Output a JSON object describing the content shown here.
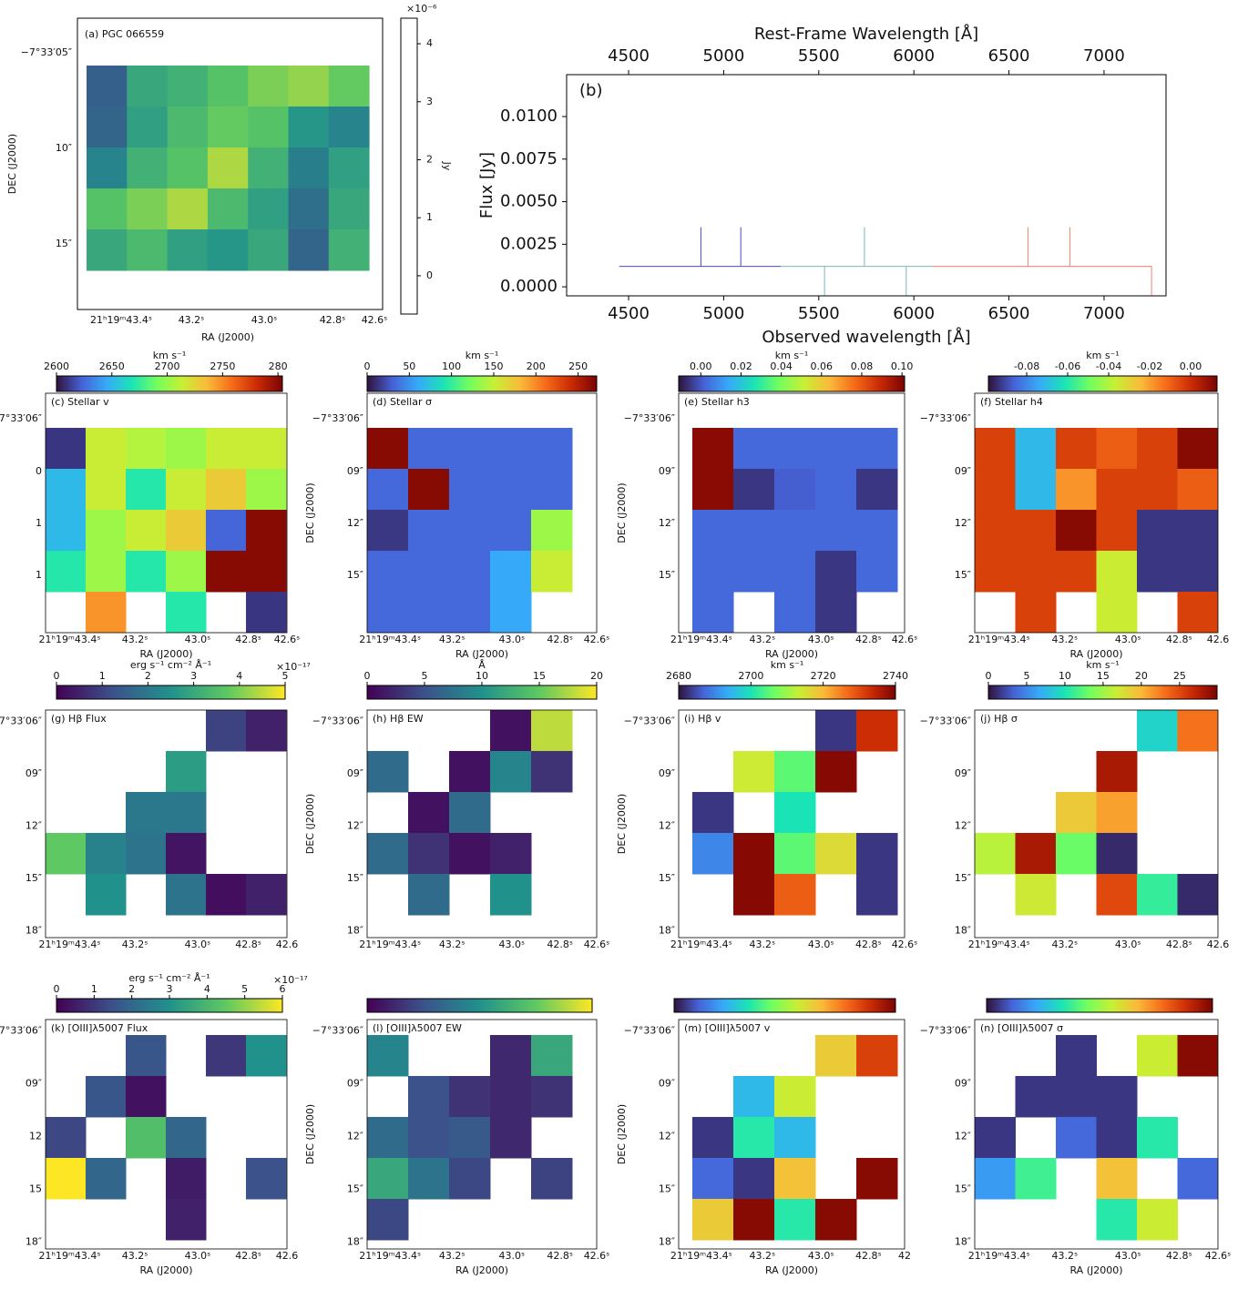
{
  "chart_data": [
    {
      "type": "map",
      "title": "(a) PGC 066559",
      "xlabel": "RA (J2000)",
      "ylabel": "DEC (J2000)",
      "xticklabels": [
        "21ʰ19ᵐ43.4ˢ",
        "43.2ˢ",
        "43.0ˢ",
        "42.8ˢ",
        "42.6ˢ"
      ],
      "yticklabels": [
        "−7°33′05″",
        "10″",
        "15″"
      ],
      "colorbar": {
        "label": "Jy",
        "multiplier": "×10⁻⁶",
        "lim": [
          -0.66,
          4.44
        ],
        "ticks": [
          0,
          1,
          2,
          3,
          4
        ],
        "fill": false
      },
      "colormap": [
        "#440154",
        "#3b528b",
        "#21918c",
        "#5ec962",
        "#fde725"
      ],
      "cells": [
        [
          0.9,
          2.4,
          2.6,
          3.0,
          3.4,
          3.6,
          3.2
        ],
        [
          1.0,
          2.2,
          2.8,
          3.2,
          3.0,
          2.0,
          1.6
        ],
        [
          1.6,
          2.6,
          3.0,
          3.8,
          2.6,
          1.5,
          2.2
        ],
        [
          3.0,
          3.4,
          3.8,
          2.8,
          2.2,
          1.2,
          2.4
        ],
        [
          2.4,
          2.8,
          2.2,
          2.0,
          2.4,
          1.0,
          2.6
        ]
      ]
    },
    {
      "type": "line",
      "annotation": "(b)",
      "xlabel": "Observed wavelength [Å]",
      "x2label": "Rest-Frame Wavelength [Å]",
      "ylabel": "Flux [Jy]",
      "xlim": [
        4174,
        7326
      ],
      "xticks": [
        4500,
        5000,
        5500,
        6000,
        6500,
        7000
      ],
      "x2lim": [
        4174,
        7326
      ],
      "x2ticks": [
        4500,
        5000,
        5500,
        6000,
        6500,
        7000
      ],
      "ylim": [
        -0.00053,
        0.01246
      ],
      "yticks": [
        {
          "value": 0,
          "label": "0.0000"
        },
        0.0025,
        {
          "value": 0.005,
          "label": "0.0050"
        },
        0.0075,
        {
          "value": 0.01,
          "label": "0.0100"
        }
      ],
      "series": [
        {
          "color": "#4a4ac8",
          "x": [
            4450,
            4880,
            4880,
            4880,
            5090,
            5090,
            5090,
            5300
          ],
          "values": [
            0.0012,
            0.0012,
            0.0035,
            0.0012,
            0.0012,
            0.0035,
            0.0012,
            0.0012
          ]
        },
        {
          "color": "#7ab8b8",
          "x": [
            5300,
            5530,
            5530,
            5530,
            5740,
            5740,
            5740,
            5960,
            5960,
            5960,
            6100
          ],
          "values": [
            0.0012,
            0.0012,
            -0.0005,
            0.0012,
            0.0012,
            0.0035,
            0.0012,
            0.0012,
            -0.0005,
            0.0012,
            0.0012
          ]
        },
        {
          "color": "#f08070",
          "x": [
            6100,
            6600,
            6600,
            6600,
            6820,
            6820,
            6820,
            7250,
            7250
          ],
          "values": [
            0.0012,
            0.0012,
            0.0035,
            0.0012,
            0.0012,
            0.0035,
            0.0012,
            0.0012,
            -0.0005
          ]
        }
      ]
    },
    {
      "type": "map",
      "title": "(c) Stellar v",
      "xlabel": "RA (J2000)",
      "xticklabels": [
        "21ʰ19ᵐ43.4ˢ",
        "43.2ˢ",
        "43.0ˢ",
        "42.8ˢ",
        "42.6ˢ"
      ],
      "yticklabels": [
        "−7°33′06″",
        "0",
        "1",
        "1"
      ],
      "colorbar": {
        "label": "km s⁻¹",
        "lim": [
          2600,
          2804
        ],
        "ticks": [
          2600,
          2650,
          2700,
          2750,
          {
            "value": 2800,
            "label": "280"
          }
        ]
      },
      "colormap": [
        "#30123b",
        "#4662d7",
        "#36aaf9",
        "#1ae4b6",
        "#72fe5e",
        "#c8ef34",
        "#faba39",
        "#f66b19",
        "#ca2a04",
        "#7a0403"
      ],
      "cells": [
        [
          2610,
          2714,
          2708,
          2702,
          2714,
          2714
        ],
        [
          2651,
          2714,
          2671,
          2714,
          2729,
          2702
        ],
        [
          2651,
          2702,
          2714,
          2729,
          2624,
          2800
        ],
        [
          2671,
          2702,
          2671,
          2702,
          2800,
          2800
        ],
        [
          null,
          2747,
          null,
          2671,
          null,
          2610
        ]
      ]
    },
    {
      "type": "map",
      "title": "(d) Stellar σ",
      "xlabel": "RA (J2000)",
      "ylabel": "DEC (J2000)",
      "xticklabels": [
        "21ʰ19ᵐ43.4ˢ",
        "43.2ˢ",
        "43.0ˢ",
        "42.8ˢ",
        "42.6ˢ"
      ],
      "yticklabels": [
        "−7°33′06″",
        "09″",
        "12″",
        "15″"
      ],
      "colorbar": {
        "label": "km s⁻¹",
        "lim": [
          0,
          272
        ],
        "ticks": [
          0,
          50,
          100,
          150,
          200,
          250
        ]
      },
      "colormap": [
        "#30123b",
        "#4662d7",
        "#36aaf9",
        "#1ae4b6",
        "#72fe5e",
        "#c8ef34",
        "#faba39",
        "#f66b19",
        "#ca2a04",
        "#7a0403"
      ],
      "cells": [
        [
          267,
          33,
          33,
          33,
          33
        ],
        [
          33,
          267,
          33,
          33,
          33
        ],
        [
          14,
          33,
          33,
          33,
          136
        ],
        [
          33,
          33,
          33,
          60,
          152
        ],
        [
          33,
          33,
          33,
          60,
          null
        ]
      ]
    },
    {
      "type": "map",
      "title": "(e) Stellar h3",
      "xlabel": "RA (J2000)",
      "ylabel": "DEC (J2000)",
      "xticklabels": [
        "21ʰ19ᵐ43.4ˢ",
        "43.2ˢ",
        "43.0ˢ",
        "42.8ˢ",
        "42.6ˢ"
      ],
      "yticklabels": [
        "−7°33′06″",
        "09″",
        "12″",
        "15″"
      ],
      "colorbar": {
        "label": "km s⁻¹",
        "lim": [
          -0.011,
          0.1013
        ],
        "ticks": [
          {
            "value": 0,
            "label": "0.00"
          },
          0.02,
          0.04,
          0.06,
          0.08,
          {
            "value": 0.1,
            "label": "0.10"
          }
        ]
      },
      "colormap": [
        "#30123b",
        "#4662d7",
        "#36aaf9",
        "#1ae4b6",
        "#72fe5e",
        "#c8ef34",
        "#faba39",
        "#f66b19",
        "#ca2a04",
        "#7a0403"
      ],
      "cells": [
        [
          0.099,
          0.0025,
          0.0025,
          0.0025,
          0.0025
        ],
        [
          0.099,
          -0.0054,
          0.001,
          0.0025,
          -0.0054
        ],
        [
          0.0025,
          0.0025,
          0.0025,
          0.0025,
          0.0025
        ],
        [
          0.0025,
          0.0025,
          0.0025,
          -0.0054,
          0.0025
        ],
        [
          0.0025,
          null,
          0.0025,
          -0.0054,
          null
        ]
      ]
    },
    {
      "type": "map",
      "title": "(f) Stellar h4",
      "xlabel": "RA (J2000)",
      "xticklabels": [
        "21ʰ19ᵐ43.4ˢ",
        "43.2ˢ",
        "43.0ˢ",
        "42.8ˢ",
        "42.6"
      ],
      "yticklabels": [
        "−7°33′06″",
        "09″",
        "12″",
        "15″"
      ],
      "colorbar": {
        "label": "km s⁻¹",
        "lim": [
          -0.0987,
          0.0129
        ],
        "ticks": [
          -0.08,
          -0.06,
          -0.04,
          -0.02,
          {
            "value": 0,
            "label": "0.00"
          }
        ]
      },
      "colormap": [
        "#30123b",
        "#4662d7",
        "#36aaf9",
        "#1ae4b6",
        "#72fe5e",
        "#c8ef34",
        "#faba39",
        "#f66b19",
        "#ca2a04",
        "#7a0403"
      ],
      "cells": [
        [
          -0.0038,
          -0.0708,
          -0.0038,
          -0.0094,
          -0.0038,
          0.0107
        ],
        [
          -0.0038,
          -0.0708,
          -0.0183,
          -0.0038,
          -0.0038,
          -0.0094
        ],
        [
          -0.0038,
          -0.0038,
          0.0107,
          -0.0038,
          -0.0931,
          -0.0931
        ],
        [
          -0.0038,
          -0.0038,
          -0.0038,
          -0.0362,
          -0.0931,
          -0.0931
        ],
        [
          null,
          -0.0038,
          null,
          -0.0362,
          null,
          -0.0038
        ]
      ]
    },
    {
      "type": "map",
      "title": "(g) Hβ Flux",
      "xticklabels": [
        "21ʰ19ᵐ43.4ˢ",
        "43.2ˢ",
        "43.0ˢ",
        "42.8ˢ",
        "42.6"
      ],
      "yticklabels": [
        "−7°33′06″",
        "09″",
        "12″",
        "15″",
        "18″"
      ],
      "colorbar": {
        "label": "erg s⁻¹ cm⁻² Å⁻¹",
        "multiplier": "×10⁻¹⁷",
        "lim": [
          0,
          5
        ],
        "ticks": [
          0,
          1,
          2,
          3,
          4,
          5
        ]
      },
      "colormap": [
        "#440154",
        "#3b528b",
        "#21918c",
        "#5ec962",
        "#fde725"
      ],
      "cells": [
        [
          null,
          null,
          null,
          null,
          1.0,
          0.5
        ],
        [
          null,
          null,
          null,
          2.75,
          null,
          null
        ],
        [
          null,
          null,
          2.0,
          2.0,
          null,
          null
        ],
        [
          3.75,
          2.2,
          1.9,
          0.3,
          null,
          null
        ],
        [
          null,
          2.5,
          null,
          1.9,
          0.2,
          0.5
        ]
      ]
    },
    {
      "type": "map",
      "title": "(h) Hβ EW",
      "ylabel": "DEC (J2000)",
      "xticklabels": [
        "21ʰ19ᵐ43.4ˢ",
        "43.2ˢ",
        "43.0ˢ",
        "42.8ˢ",
        "42.6ˢ"
      ],
      "yticklabels": [
        "−7°33′06″",
        "09″",
        "12″",
        "15″",
        "18″"
      ],
      "colorbar": {
        "label": "Å",
        "lim": [
          0,
          20
        ],
        "ticks": [
          0,
          5,
          10,
          15,
          20
        ]
      },
      "colormap": [
        "#440154",
        "#3b528b",
        "#21918c",
        "#5ec962",
        "#fde725"
      ],
      "cells": [
        [
          null,
          null,
          null,
          1,
          18
        ],
        [
          7,
          null,
          1,
          9,
          3
        ],
        [
          null,
          1,
          7,
          null,
          null
        ],
        [
          7,
          3,
          1,
          2,
          null
        ],
        [
          null,
          7,
          null,
          10,
          null
        ]
      ]
    },
    {
      "type": "map",
      "title": "(i) Hβ v",
      "ylabel": "DEC (J2000)",
      "xticklabels": [
        "21ʰ19ᵐ43.4ˢ",
        "43.2ˢ",
        "43.0ˢ",
        "42.8ˢ",
        "42.6ˢ"
      ],
      "yticklabels": [
        "−7°33′06″",
        "09″",
        "12″",
        "15″",
        "18″"
      ],
      "colorbar": {
        "label": "km s⁻¹",
        "lim": [
          2680,
          2740
        ],
        "ticks": [
          2680,
          2700,
          2720,
          2740
        ]
      },
      "colormap": [
        "#30123b",
        "#4662d7",
        "#36aaf9",
        "#1ae4b6",
        "#72fe5e",
        "#c8ef34",
        "#faba39",
        "#f66b19",
        "#ca2a04",
        "#7a0403"
      ],
      "cells": [
        [
          null,
          null,
          null,
          2683,
          2733
        ],
        [
          null,
          2714,
          2705,
          2739,
          null
        ],
        [
          2683,
          null,
          2700,
          null,
          null
        ],
        [
          2690,
          2739,
          2705,
          2716,
          2683
        ],
        [
          null,
          2739,
          2728,
          null,
          2683
        ]
      ]
    },
    {
      "type": "map",
      "title": "(j) Hβ σ",
      "xticklabels": [
        "21ʰ19ᵐ43.4ˢ",
        "43.2ˢ",
        "43.0ˢ",
        "42.8ˢ",
        "42.6"
      ],
      "yticklabels": [
        "−7°33′06″",
        "09″",
        "12″",
        "15″",
        "18″"
      ],
      "colorbar": {
        "label": "km s⁻¹",
        "lim": [
          0,
          29.9
        ],
        "ticks": [
          0,
          5,
          10,
          15,
          20,
          25
        ]
      },
      "colormap": [
        "#30123b",
        "#4662d7",
        "#36aaf9",
        "#1ae4b6",
        "#72fe5e",
        "#c8ef34",
        "#faba39",
        "#f66b19",
        "#ca2a04",
        "#7a0403"
      ],
      "cells": [
        [
          null,
          null,
          null,
          null,
          9,
          23
        ],
        [
          null,
          null,
          null,
          28,
          null,
          null
        ],
        [
          null,
          null,
          19,
          21,
          null,
          null
        ],
        [
          16,
          28,
          13,
          1,
          null,
          null
        ],
        [
          null,
          17,
          null,
          25,
          11,
          1
        ]
      ]
    },
    {
      "type": "map",
      "title": "(k) [OIII]λ5007 Flux",
      "xlabel": "RA (J2000)",
      "xticklabels": [
        "21ʰ19ᵐ43.4ˢ",
        "43.2ˢ",
        "43.0ˢ",
        "42.8ˢ",
        "42.6"
      ],
      "yticklabels": [
        "−7°33′06″",
        "09″",
        "12",
        "15",
        "18″"
      ],
      "colorbar": {
        "label": "erg s⁻¹ cm⁻² Å⁻¹",
        "multiplier": "×10⁻¹⁷",
        "lim": [
          0,
          6
        ],
        "ticks": [
          0,
          1,
          2,
          3,
          4,
          5,
          6
        ]
      },
      "colormap": [
        "#440154",
        "#3b528b",
        "#21918c",
        "#5ec962",
        "#fde725"
      ],
      "cells": [
        [
          null,
          null,
          1.6,
          null,
          1.0,
          3.0
        ],
        [
          null,
          1.6,
          0.3,
          null,
          null,
          null
        ],
        [
          1.3,
          null,
          4.2,
          2.0,
          null,
          null
        ],
        [
          6.0,
          2.0,
          null,
          0.5,
          null,
          1.5
        ],
        [
          null,
          null,
          null,
          0.6,
          null,
          null
        ]
      ]
    },
    {
      "type": "map",
      "title": "(l) [OIII]λ5007 EW",
      "xlabel": "RA (J2000)",
      "ylabel": "DEC (J2000)",
      "xticklabels": [
        "21ʰ19ᵐ43.4ˢ",
        "43.2ˢ",
        "43.0ˢ",
        "42.8ˢ",
        "42.6ˢ"
      ],
      "yticklabels": [
        "−7°33′06″",
        "09″",
        "12″",
        "15″",
        "18″"
      ],
      "colorbar": {
        "lim": [
          0,
          1
        ]
      },
      "colormap": [
        "#440154",
        "#3b528b",
        "#21918c",
        "#5ec962",
        "#fde725"
      ],
      "cells": [
        [
          0.45,
          null,
          null,
          0.12,
          0.6
        ],
        [
          null,
          0.25,
          0.15,
          0.12,
          0.15
        ],
        [
          0.35,
          0.25,
          0.28,
          0.12,
          null
        ],
        [
          0.6,
          0.38,
          0.22,
          null,
          0.2
        ],
        [
          0.22,
          null,
          null,
          null,
          null
        ]
      ]
    },
    {
      "type": "map",
      "title": "(m) [OIII]λ5007 v",
      "xlabel": "RA (J2000)",
      "ylabel": "DEC (J2000)",
      "xticklabels": [
        "21ʰ19ᵐ43.4ˢ",
        "43.2ˢ",
        "43.0ˢ",
        "42.8ˢ",
        "42"
      ],
      "yticklabels": [
        "−7°33′06″",
        "09″",
        "12″",
        "15″",
        "18″"
      ],
      "colorbar": {
        "lim": [
          0,
          1
        ]
      },
      "colormap": [
        "#30123b",
        "#4662d7",
        "#36aaf9",
        "#1ae4b6",
        "#72fe5e",
        "#c8ef34",
        "#faba39",
        "#f66b19",
        "#ca2a04",
        "#7a0403"
      ],
      "cells": [
        [
          null,
          null,
          null,
          0.63,
          0.85
        ],
        [
          null,
          0.25,
          0.56,
          null,
          null
        ],
        [
          0.05,
          0.35,
          0.25,
          null,
          null
        ],
        [
          0.12,
          0.05,
          0.65,
          null,
          0.98
        ],
        [
          0.63,
          0.98,
          0.35,
          0.98,
          null
        ]
      ]
    },
    {
      "type": "map",
      "title": "(n) [OIII]λ5007 σ",
      "xlabel": "RA (J2000)",
      "xticklabels": [
        "21ʰ19ᵐ43.4ˢ",
        "43.2ˢ",
        "43.0ˢ",
        "42.8ˢ",
        "42.6ˢ"
      ],
      "yticklabels": [
        "−7°33′06″",
        "09″",
        "12″",
        "15″",
        "18″"
      ],
      "colorbar": {
        "lim": [
          0,
          1
        ]
      },
      "colormap": [
        "#30123b",
        "#4662d7",
        "#36aaf9",
        "#1ae4b6",
        "#72fe5e",
        "#c8ef34",
        "#faba39",
        "#f66b19",
        "#ca2a04",
        "#7a0403"
      ],
      "cells": [
        [
          null,
          null,
          0.05,
          null,
          0.56,
          0.98
        ],
        [
          null,
          0.05,
          0.05,
          0.05,
          null,
          null
        ],
        [
          0.05,
          null,
          0.12,
          0.05,
          0.35,
          null
        ],
        [
          0.2,
          0.38,
          null,
          0.65,
          null,
          0.12
        ],
        [
          null,
          null,
          null,
          0.35,
          0.56,
          null
        ]
      ]
    }
  ]
}
